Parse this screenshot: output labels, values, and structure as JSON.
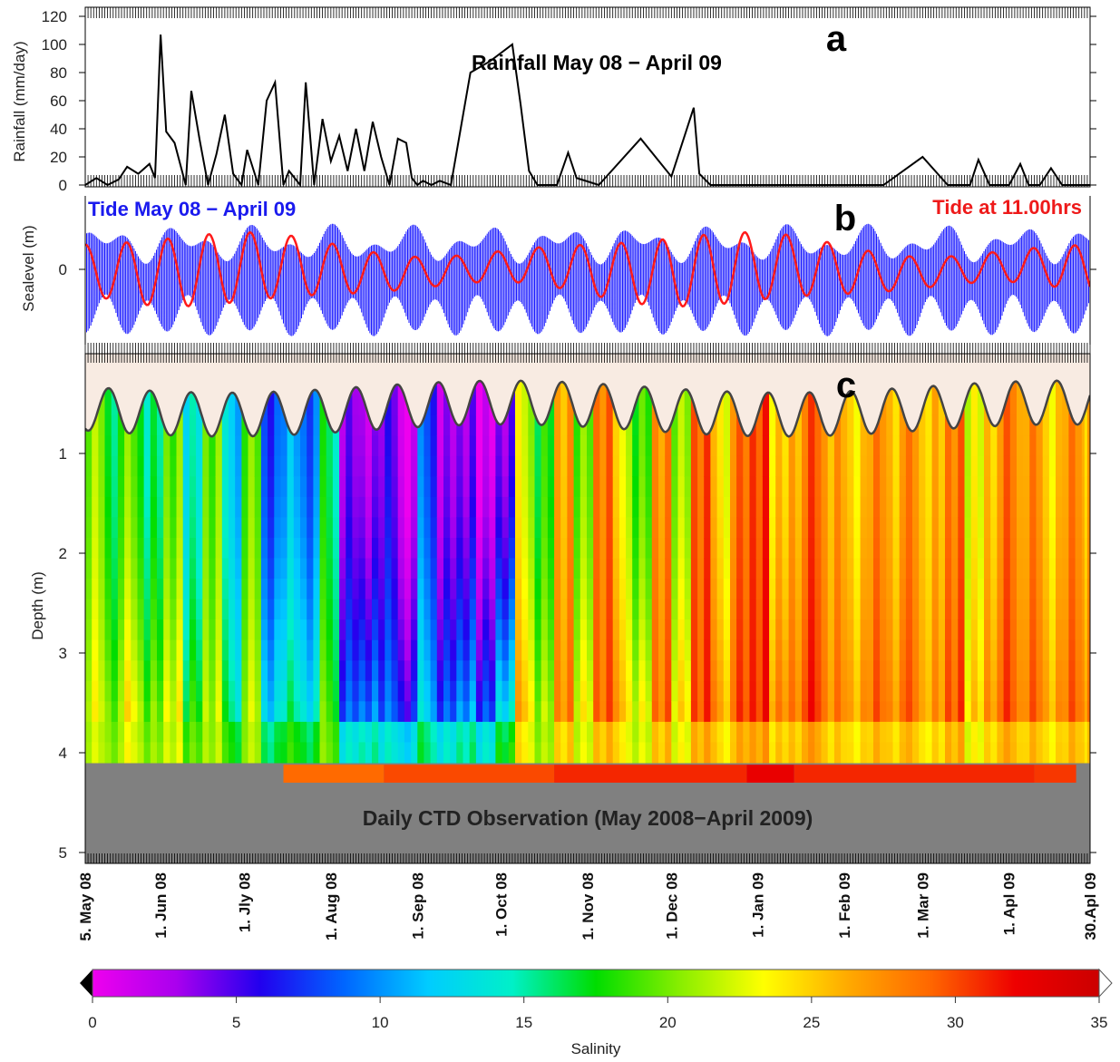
{
  "chart_data": [
    {
      "type": "line",
      "panel": "a",
      "title": "Rainfall May 08 − April 09",
      "ylabel": "Rainfall (mm/day)",
      "ylim": [
        0,
        120
      ],
      "yticks": [
        0,
        20,
        40,
        60,
        80,
        100,
        120
      ],
      "xlim": [
        "2008-05-05",
        "2009-04-30"
      ],
      "series": [
        {
          "color": "#000000",
          "x": [
            "2008-05-05",
            "2008-05-09",
            "2008-05-13",
            "2008-05-17",
            "2008-05-20",
            "2008-05-24",
            "2008-05-28",
            "2008-05-30",
            "2008-06-01",
            "2008-06-03",
            "2008-06-06",
            "2008-06-10",
            "2008-06-12",
            "2008-06-15",
            "2008-06-18",
            "2008-06-21",
            "2008-06-24",
            "2008-06-27",
            "2008-06-30",
            "2008-07-02",
            "2008-07-06",
            "2008-07-09",
            "2008-07-12",
            "2008-07-15",
            "2008-07-17",
            "2008-07-19",
            "2008-07-21",
            "2008-07-23",
            "2008-07-26",
            "2008-07-29",
            "2008-08-01",
            "2008-08-04",
            "2008-08-07",
            "2008-08-10",
            "2008-08-13",
            "2008-08-16",
            "2008-08-19",
            "2008-08-22",
            "2008-08-25",
            "2008-08-28",
            "2008-08-30",
            "2008-09-01",
            "2008-09-03",
            "2008-09-06",
            "2008-09-09",
            "2008-09-13",
            "2008-09-20",
            "2008-09-27",
            "2008-10-05",
            "2008-10-08",
            "2008-10-11",
            "2008-10-14",
            "2008-10-18",
            "2008-10-21",
            "2008-10-25",
            "2008-10-28",
            "2008-11-05",
            "2008-11-20",
            "2008-12-01",
            "2008-12-09",
            "2008-12-11",
            "2008-12-15",
            "2009-01-01",
            "2009-01-20",
            "2009-01-22",
            "2009-01-25",
            "2009-02-15",
            "2009-03-01",
            "2009-03-10",
            "2009-03-15",
            "2009-03-18",
            "2009-03-21",
            "2009-03-25",
            "2009-03-27",
            "2009-03-29",
            "2009-04-01",
            "2009-04-05",
            "2009-04-08",
            "2009-04-12",
            "2009-04-16",
            "2009-04-20",
            "2009-04-25",
            "2009-04-30"
          ],
          "y": [
            0,
            5,
            0,
            4,
            13,
            8,
            15,
            5,
            107,
            38,
            30,
            0,
            67,
            32,
            0,
            22,
            50,
            8,
            0,
            25,
            0,
            60,
            73,
            0,
            10,
            5,
            0,
            73,
            0,
            47,
            17,
            35,
            10,
            40,
            10,
            45,
            20,
            0,
            33,
            30,
            5,
            0,
            3,
            0,
            3,
            0,
            80,
            88,
            100,
            57,
            10,
            0,
            0,
            0,
            23,
            5,
            0,
            33,
            6,
            55,
            8,
            0,
            0,
            0,
            0,
            0,
            0,
            20,
            0,
            0,
            0,
            18,
            0,
            0,
            0,
            0,
            15,
            0,
            0,
            12,
            0,
            0,
            0
          ]
        }
      ]
    },
    {
      "type": "line",
      "panel": "b",
      "ylabel": "Sealevel (m)",
      "yticks": [
        0
      ],
      "ylim": [
        -1.0,
        0.9
      ],
      "xlim": [
        "2008-05-05",
        "2009-04-30"
      ],
      "series": [
        {
          "name": "Tide May 08 − April 09",
          "color": "#0000ff",
          "style": "hourly tide, spring-neap envelope 0.4–0.9 m",
          "amp_range_m": [
            0.4,
            0.9
          ]
        },
        {
          "name": "Tide at 11.00hrs",
          "color": "#ff0000",
          "style": "daily tide at 11:00",
          "amp_range_m": [
            0.2,
            0.5
          ]
        }
      ]
    },
    {
      "type": "heatmap",
      "panel": "c",
      "title": "Daily CTD Observation (May 2008−April 2009)",
      "ylabel": "Depth (m)",
      "ylim": [
        5,
        0
      ],
      "yticks": [
        1,
        2,
        3,
        4,
        5
      ],
      "xlim": [
        "2008-05-05",
        "2009-04-30"
      ],
      "xticklabels": [
        "5. May 08",
        "1. Jun 08",
        "1. Jly 08",
        "1. Aug 08",
        "1. Sep 08",
        "1. Oct 08",
        "1. Nov 08",
        "1. Dec 08",
        "1. Jan 09",
        "1. Feb 09",
        "1. Mar 09",
        "1. Apl 09",
        "30.Apl 09"
      ],
      "xtickdates": [
        "2008-05-05",
        "2008-06-01",
        "2008-07-01",
        "2008-08-01",
        "2008-09-01",
        "2008-10-01",
        "2008-11-01",
        "2008-12-01",
        "2009-01-01",
        "2009-02-01",
        "2009-03-01",
        "2009-04-01",
        "2009-04-30"
      ],
      "colorbar": {
        "label": "Salinity",
        "range": [
          0,
          35
        ],
        "ticks": [
          0,
          5,
          10,
          15,
          20,
          25,
          30,
          35
        ],
        "stops": [
          "#ee00ee",
          "#aa00ee",
          "#2200ee",
          "#0066ff",
          "#00ccff",
          "#00f0c8",
          "#00dd00",
          "#88ee00",
          "#ffff00",
          "#ffaa00",
          "#ff6600",
          "#ee0000",
          "#cc0000"
        ]
      },
      "surface_depth_m": {
        "mean": 0.55,
        "amp": 0.22
      },
      "bottom_depth_m": 4.1,
      "columns_date": [
        "2008-05-05",
        "2008-05-12",
        "2008-05-19",
        "2008-05-26",
        "2008-06-02",
        "2008-06-09",
        "2008-06-16",
        "2008-06-23",
        "2008-06-30",
        "2008-07-07",
        "2008-07-14",
        "2008-07-21",
        "2008-07-28",
        "2008-08-04",
        "2008-08-11",
        "2008-08-18",
        "2008-08-25",
        "2008-09-01",
        "2008-09-08",
        "2008-09-15",
        "2008-09-22",
        "2008-09-29",
        "2008-10-06",
        "2008-10-13",
        "2008-10-20",
        "2008-10-27",
        "2008-11-03",
        "2008-11-10",
        "2008-11-17",
        "2008-11-24",
        "2008-12-01",
        "2008-12-08",
        "2008-12-15",
        "2008-12-22",
        "2008-12-29",
        "2009-01-05",
        "2009-01-12",
        "2009-01-19",
        "2009-01-26",
        "2009-02-02",
        "2009-02-09",
        "2009-02-16",
        "2009-02-23",
        "2009-03-02",
        "2009-03-09",
        "2009-03-16",
        "2009-03-23",
        "2009-03-30",
        "2009-04-06",
        "2009-04-13",
        "2009-04-20",
        "2009-04-27"
      ],
      "upper_salinity": [
        21,
        17,
        19,
        15,
        19,
        14,
        20,
        12,
        19,
        7,
        11,
        9,
        16,
        3,
        2,
        5,
        1,
        8,
        2,
        3,
        1,
        4,
        22,
        17,
        26,
        20,
        29,
        23,
        18,
        27,
        21,
        30,
        24,
        28,
        30,
        25,
        27,
        29,
        26,
        24,
        28,
        26,
        27,
        25,
        28,
        23,
        26,
        28,
        27,
        24,
        28,
        26
      ],
      "lower_salinity": [
        24,
        22,
        25,
        21,
        24,
        20,
        23,
        17,
        22,
        14,
        18,
        16,
        20,
        10,
        12,
        11,
        9,
        14,
        10,
        13,
        11,
        18,
        27,
        22,
        28,
        25,
        30,
        27,
        24,
        29,
        26,
        31,
        28,
        30,
        31,
        29,
        30,
        31,
        28,
        27,
        30,
        29,
        29,
        27,
        30,
        26,
        29,
        30,
        29,
        27,
        30,
        29
      ],
      "deep_layer": [
        {
          "start": "2008-07-15",
          "end": "2008-08-20",
          "salinity": 29.0
        },
        {
          "start": "2008-08-20",
          "end": "2008-10-20",
          "salinity": 30.0
        },
        {
          "start": "2008-10-20",
          "end": "2008-12-28",
          "salinity": 31.0
        },
        {
          "start": "2008-12-28",
          "end": "2009-01-14",
          "salinity": 32.5
        },
        {
          "start": "2009-01-14",
          "end": "2009-04-10",
          "salinity": 31.0
        },
        {
          "start": "2009-04-10",
          "end": "2009-04-25",
          "salinity": 30.5
        }
      ]
    }
  ]
}
